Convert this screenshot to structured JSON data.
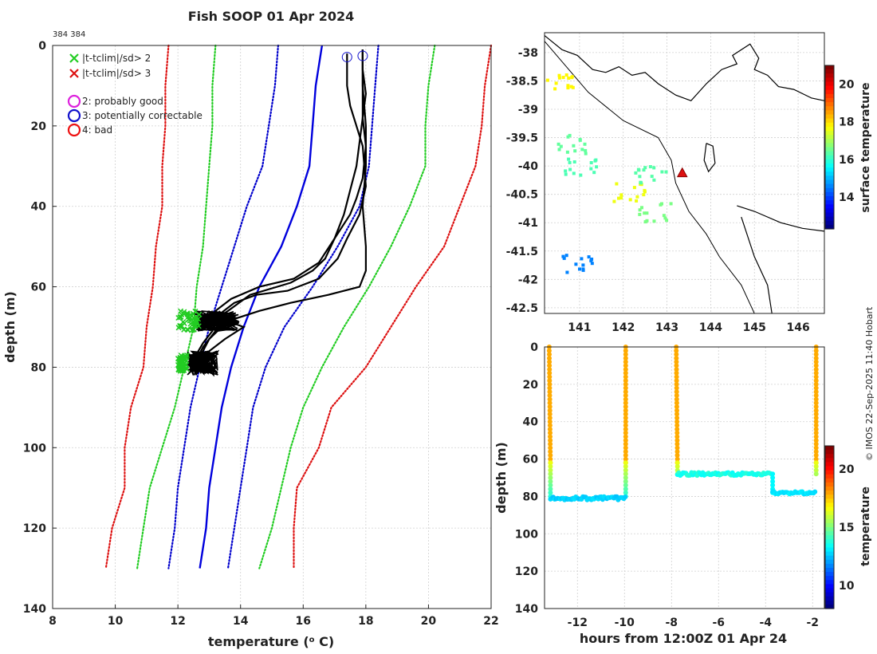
{
  "title": "Fish SOOP 01 Apr 2024",
  "small_label": "384 384",
  "copyright": "© IMOS 22-Sep-2025 11:40 Hobart",
  "chart_data": [
    {
      "id": "profile",
      "type": "line",
      "xlabel": "temperature (",
      "xlabel_sup": "o",
      "xlabel_tail": " C)",
      "ylabel": "depth (m)",
      "xlim": [
        8,
        22
      ],
      "ylim": [
        140,
        0
      ],
      "xticks": [
        8,
        10,
        12,
        14,
        16,
        18,
        20,
        22
      ],
      "yticks": [
        0,
        20,
        40,
        60,
        80,
        100,
        120,
        140
      ],
      "legend": [
        {
          "marker": "x",
          "color": "#22cc22",
          "label": "|t-tclim|/sd> 2"
        },
        {
          "marker": "x",
          "color": "#dd1111",
          "label": "|t-tclim|/sd> 3"
        },
        {
          "marker": "o",
          "color": "#dd22dd",
          "label": "2: probably good"
        },
        {
          "marker": "o",
          "color": "#1111cc",
          "label": "3: potentially correctable"
        },
        {
          "marker": "o",
          "color": "#ee1111",
          "label": "4: bad"
        }
      ],
      "climatology": [
        {
          "name": "mean",
          "color": "#0000dd",
          "style": "solid",
          "points": [
            [
              16.6,
              0
            ],
            [
              16.4,
              10
            ],
            [
              16.3,
              20
            ],
            [
              16.2,
              30
            ],
            [
              15.8,
              40
            ],
            [
              15.3,
              50
            ],
            [
              14.6,
              60
            ],
            [
              14.1,
              70
            ],
            [
              13.7,
              80
            ],
            [
              13.4,
              90
            ],
            [
              13.2,
              100
            ],
            [
              13.0,
              110
            ],
            [
              12.9,
              120
            ],
            [
              12.7,
              130
            ]
          ]
        },
        {
          "name": "mean-1sd",
          "color": "#0000cc",
          "style": "dotted",
          "points": [
            [
              15.2,
              0
            ],
            [
              15.1,
              10
            ],
            [
              14.9,
              20
            ],
            [
              14.7,
              30
            ],
            [
              14.2,
              40
            ],
            [
              13.8,
              50
            ],
            [
              13.4,
              60
            ],
            [
              13.0,
              70
            ],
            [
              12.7,
              80
            ],
            [
              12.4,
              90
            ],
            [
              12.2,
              100
            ],
            [
              12.0,
              110
            ],
            [
              11.9,
              120
            ],
            [
              11.7,
              130
            ]
          ]
        },
        {
          "name": "mean+1sd",
          "color": "#0000cc",
          "style": "dotted",
          "points": [
            [
              18.4,
              0
            ],
            [
              18.3,
              10
            ],
            [
              18.2,
              20
            ],
            [
              18.1,
              30
            ],
            [
              17.8,
              40
            ],
            [
              17.1,
              50
            ],
            [
              16.3,
              60
            ],
            [
              15.4,
              70
            ],
            [
              14.8,
              80
            ],
            [
              14.4,
              90
            ],
            [
              14.2,
              100
            ],
            [
              14.0,
              110
            ],
            [
              13.8,
              120
            ],
            [
              13.6,
              130
            ]
          ]
        },
        {
          "name": "mean-2sd",
          "color": "#22cc22",
          "style": "dotted",
          "points": [
            [
              13.2,
              0
            ],
            [
              13.1,
              10
            ],
            [
              13.1,
              20
            ],
            [
              13.0,
              30
            ],
            [
              12.9,
              40
            ],
            [
              12.8,
              50
            ],
            [
              12.6,
              60
            ],
            [
              12.5,
              70
            ],
            [
              12.2,
              80
            ],
            [
              11.9,
              90
            ],
            [
              11.5,
              100
            ],
            [
              11.1,
              110
            ],
            [
              10.9,
              120
            ],
            [
              10.7,
              130
            ]
          ]
        },
        {
          "name": "mean+2sd",
          "color": "#22cc22",
          "style": "dotted",
          "points": [
            [
              20.2,
              0
            ],
            [
              20.0,
              10
            ],
            [
              19.9,
              20
            ],
            [
              19.9,
              30
            ],
            [
              19.4,
              40
            ],
            [
              18.8,
              50
            ],
            [
              18.1,
              60
            ],
            [
              17.3,
              70
            ],
            [
              16.6,
              80
            ],
            [
              16.0,
              90
            ],
            [
              15.6,
              100
            ],
            [
              15.3,
              110
            ],
            [
              15.0,
              120
            ],
            [
              14.6,
              130
            ]
          ]
        },
        {
          "name": "mean-3sd",
          "color": "#dd1111",
          "style": "dotted",
          "points": [
            [
              11.7,
              0
            ],
            [
              11.6,
              10
            ],
            [
              11.6,
              20
            ],
            [
              11.5,
              30
            ],
            [
              11.5,
              40
            ],
            [
              11.3,
              50
            ],
            [
              11.2,
              60
            ],
            [
              11.0,
              70
            ],
            [
              10.9,
              80
            ],
            [
              10.5,
              90
            ],
            [
              10.3,
              100
            ],
            [
              10.3,
              110
            ],
            [
              9.9,
              120
            ],
            [
              9.7,
              130
            ]
          ]
        },
        {
          "name": "mean+3sd",
          "color": "#dd1111",
          "style": "dotted",
          "points": [
            [
              22.0,
              0
            ],
            [
              21.8,
              10
            ],
            [
              21.7,
              20
            ],
            [
              21.5,
              30
            ],
            [
              21.0,
              40
            ],
            [
              20.5,
              50
            ],
            [
              19.6,
              60
            ],
            [
              18.8,
              70
            ],
            [
              18.0,
              80
            ],
            [
              16.9,
              90
            ],
            [
              16.5,
              100
            ],
            [
              15.8,
              110
            ],
            [
              15.7,
              120
            ],
            [
              15.7,
              130
            ]
          ]
        }
      ],
      "profiles": [
        [
          [
            17.4,
            2
          ],
          [
            17.4,
            6
          ],
          [
            17.4,
            10
          ],
          [
            17.5,
            15
          ],
          [
            17.7,
            20
          ],
          [
            17.9,
            25
          ],
          [
            18.0,
            35
          ],
          [
            17.8,
            42
          ],
          [
            17.4,
            48
          ],
          [
            17.1,
            53
          ],
          [
            16.5,
            58
          ],
          [
            15.5,
            61
          ],
          [
            14.5,
            62
          ],
          [
            13.8,
            64
          ],
          [
            13.3,
            67
          ],
          [
            13.0,
            69
          ],
          [
            13.1,
            71
          ],
          [
            12.8,
            74
          ],
          [
            12.5,
            78
          ],
          [
            12.4,
            80
          ],
          [
            12.5,
            82
          ]
        ],
        [
          [
            17.9,
            1
          ],
          [
            17.9,
            6
          ],
          [
            18.0,
            12
          ],
          [
            17.9,
            18
          ],
          [
            18.0,
            25
          ],
          [
            17.9,
            33
          ],
          [
            17.7,
            38
          ],
          [
            17.5,
            42
          ],
          [
            17.0,
            48
          ],
          [
            16.7,
            53
          ],
          [
            16.3,
            56
          ],
          [
            15.6,
            59
          ],
          [
            14.3,
            62
          ],
          [
            13.6,
            66
          ],
          [
            13.2,
            68
          ],
          [
            13.4,
            70
          ],
          [
            13.0,
            73
          ],
          [
            12.8,
            76
          ],
          [
            12.6,
            79
          ]
        ],
        [
          [
            17.9,
            1
          ],
          [
            17.9,
            6
          ],
          [
            17.9,
            12
          ],
          [
            17.9,
            18
          ],
          [
            17.8,
            24
          ],
          [
            17.7,
            30
          ],
          [
            17.5,
            36
          ],
          [
            17.3,
            42
          ],
          [
            17.0,
            48
          ],
          [
            16.5,
            54
          ],
          [
            15.7,
            58
          ],
          [
            14.6,
            60
          ],
          [
            13.7,
            63
          ],
          [
            13.2,
            66
          ],
          [
            13.4,
            68
          ],
          [
            14.1,
            70
          ],
          [
            13.5,
            73
          ],
          [
            13.0,
            76
          ],
          [
            12.6,
            80
          ]
        ],
        [
          [
            17.9,
            1
          ],
          [
            17.9,
            10
          ],
          [
            18.0,
            20
          ],
          [
            18.0,
            30
          ],
          [
            17.9,
            40
          ],
          [
            18.0,
            50
          ],
          [
            18.0,
            56
          ],
          [
            17.8,
            60
          ],
          [
            16.8,
            62
          ],
          [
            15.6,
            64
          ],
          [
            14.6,
            66
          ],
          [
            13.8,
            68
          ],
          [
            13.3,
            70
          ],
          [
            13.1,
            72
          ],
          [
            12.8,
            75
          ],
          [
            12.6,
            78
          ],
          [
            12.4,
            81
          ]
        ]
      ],
      "flagged_points": [
        {
          "marker": "x",
          "color": "#22cc22",
          "clusters": [
            {
              "t": [
                12.0,
                12.7
              ],
              "d": [
                66,
                71
              ]
            },
            {
              "t": [
                12.0,
                12.3
              ],
              "d": [
                77,
                81
              ]
            }
          ]
        }
      ],
      "noise_clusters": [
        {
          "t": [
            12.5,
            14.0
          ],
          "d": [
            66,
            71
          ]
        },
        {
          "t": [
            12.3,
            13.3
          ],
          "d": [
            76,
            82
          ]
        }
      ],
      "qc_circles": [
        {
          "t": 17.4,
          "d": 1.5,
          "color": "#1111cc"
        },
        {
          "t": 17.9,
          "d": 1.2,
          "color": "#1111cc"
        }
      ]
    },
    {
      "id": "map",
      "type": "heatmap",
      "xlim": [
        140.2,
        146.6
      ],
      "ylim": [
        -42.6,
        -37.65
      ],
      "xticks": [
        141,
        142,
        143,
        144,
        145,
        146
      ],
      "yticks": [
        -38,
        -38.5,
        -39,
        -39.5,
        -40,
        -40.5,
        -41,
        -41.5,
        -42,
        -42.5
      ],
      "colorbar": {
        "label": "surface temperature",
        "min": 12.3,
        "max": 21,
        "ticks": [
          14,
          16,
          18,
          20
        ]
      },
      "sst_patches": [
        {
          "lon": 142.7,
          "lat": -40.8,
          "value": 16.6
        },
        {
          "lon": 142.1,
          "lat": -40.45,
          "value": 17.6
        },
        {
          "lon": 140.8,
          "lat": -39.6,
          "value": 16.4
        },
        {
          "lon": 141.0,
          "lat": -40.0,
          "value": 16.2
        },
        {
          "lon": 140.5,
          "lat": -38.5,
          "value": 17.8
        },
        {
          "lon": 142.6,
          "lat": -40.15,
          "value": 16.3
        },
        {
          "lon": 140.9,
          "lat": -41.7,
          "value": 14.5
        }
      ],
      "ship_position": {
        "lon": 143.35,
        "lat": -40.12,
        "marker": "triangle"
      }
    },
    {
      "id": "timeseries",
      "type": "scatter",
      "xlabel": "hours from 12:00Z 01 Apr 24",
      "ylabel": "depth (m)",
      "xlim": [
        -13.4,
        -1.5
      ],
      "ylim": [
        140,
        0
      ],
      "xticks": [
        -12,
        -10,
        -8,
        -6,
        -4,
        -2
      ],
      "yticks": [
        0,
        20,
        40,
        60,
        80,
        100,
        120,
        140
      ],
      "colorbar": {
        "label": "temperature",
        "min": 8,
        "max": 22,
        "ticks": [
          10,
          15,
          20
        ]
      },
      "casts": [
        {
          "t_down": -13.2,
          "t_up": -9.95,
          "bottom": 81,
          "surface_temp": 17.9,
          "bottom_temp": 12.6
        },
        {
          "t_down": -7.8,
          "t_up": -1.85,
          "bottom": 68,
          "bottom2": 78,
          "t_step": -3.7,
          "surface_temp": 17.9,
          "bottom_temp": 13.5
        }
      ]
    }
  ]
}
